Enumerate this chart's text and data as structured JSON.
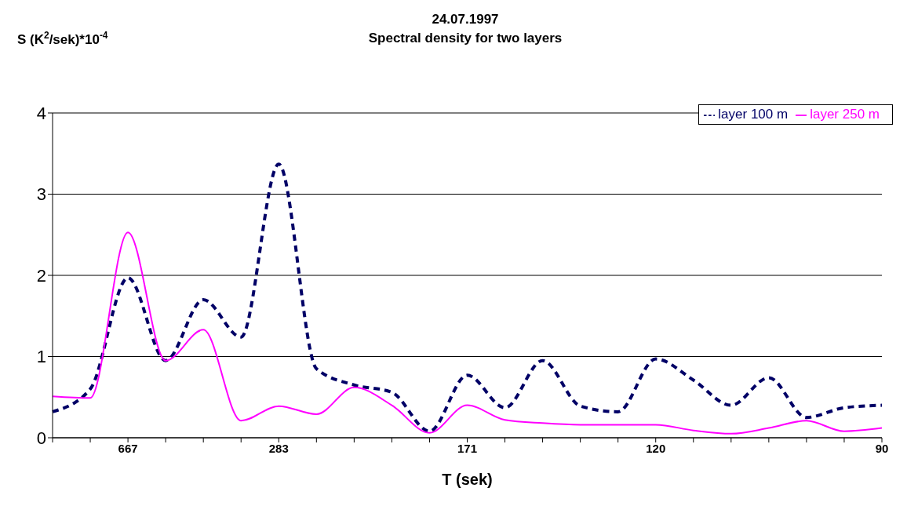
{
  "chart_data": {
    "type": "line",
    "title": "24.07.1997",
    "subtitle": "Spectral density for two layers",
    "xlabel": "T (sek)",
    "ylabel": "S (K$^{2}$/sek)*10$^{-4}$",
    "categories": [
      null,
      null,
      "667",
      null,
      null,
      null,
      "283",
      null,
      null,
      null,
      null,
      "171",
      null,
      null,
      null,
      null,
      "120",
      null,
      null,
      null,
      null,
      null,
      "90"
    ],
    "series": [
      {
        "name": "layer 100 m",
        "color": "#000066",
        "line_style": "dashed",
        "values": [
          0.32,
          0.6,
          1.97,
          0.95,
          1.7,
          1.24,
          3.37,
          0.85,
          0.65,
          0.56,
          0.08,
          0.77,
          0.37,
          0.95,
          0.39,
          0.32,
          0.97,
          0.71,
          0.4,
          0.74,
          0.25,
          0.37,
          0.4
        ]
      },
      {
        "name": "layer 250 m",
        "color": "#ff00ff",
        "line_style": "solid",
        "values": [
          0.51,
          0.49,
          2.53,
          0.95,
          1.33,
          0.21,
          0.39,
          0.29,
          0.62,
          0.4,
          0.06,
          0.4,
          0.22,
          0.18,
          0.16,
          0.16,
          0.16,
          0.09,
          0.05,
          0.12,
          0.21,
          0.08,
          0.12
        ]
      }
    ],
    "ylim": [
      0,
      4
    ],
    "yticks": [
      0,
      1,
      2,
      3,
      4
    ],
    "grid": "y",
    "legend": "top right",
    "marker": "none"
  }
}
